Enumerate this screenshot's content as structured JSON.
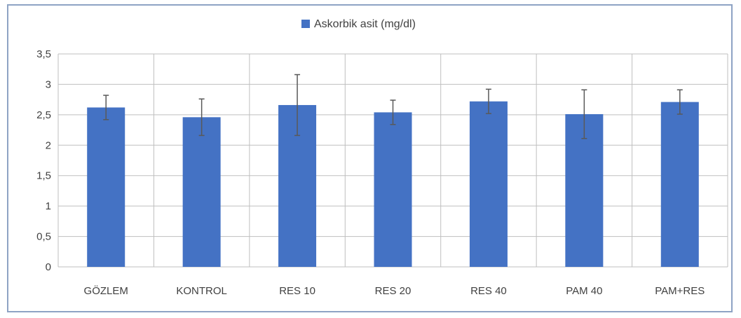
{
  "chart_data": {
    "type": "bar",
    "title": "",
    "xlabel": "",
    "ylabel": "",
    "categories": [
      "GÖZLEM",
      "KONTROL",
      "RES 10",
      "RES 20",
      "RES 40",
      "PAM 40",
      "PAM+RES"
    ],
    "series": [
      {
        "name": "Askorbik asit (mg/dl)",
        "values": [
          2.62,
          2.46,
          2.66,
          2.54,
          2.72,
          2.51,
          2.71
        ],
        "error": [
          0.2,
          0.3,
          0.5,
          0.2,
          0.2,
          0.4,
          0.2
        ],
        "color": "#4472c4"
      }
    ],
    "ylim": [
      0,
      3.5
    ],
    "yticks": [
      0,
      0.5,
      1,
      1.5,
      2,
      2.5,
      3,
      3.5
    ],
    "ytick_labels": [
      "0",
      "0,5",
      "1",
      "1,5",
      "2",
      "2,5",
      "3",
      "3,5"
    ],
    "grid": true,
    "legend_position": "top",
    "colors": {
      "bar": "#4472c4",
      "grid": "#bfbfbf",
      "error_bar": "#595959",
      "frame": "#8ea3c4",
      "text": "#404040"
    }
  }
}
